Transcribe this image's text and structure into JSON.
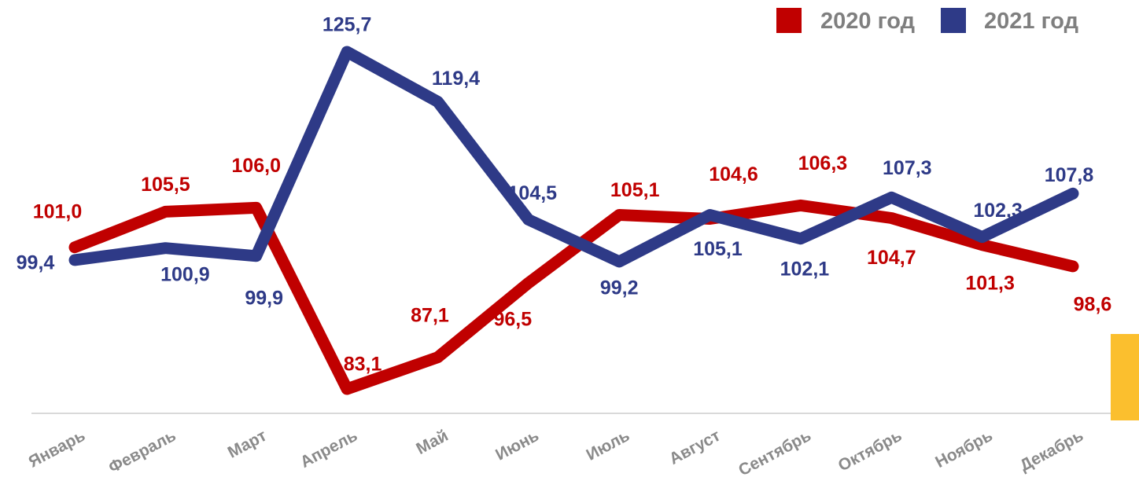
{
  "chart_data": {
    "type": "line",
    "categories": [
      "Январь",
      "Февраль",
      "Март",
      "Апрель",
      "Май",
      "Июнь",
      "Июль",
      "Август",
      "Сентябрь",
      "Октябрь",
      "Ноябрь",
      "Декабрь"
    ],
    "series": [
      {
        "name": "2020 год",
        "color": "#c00000",
        "values": [
          101.0,
          105.5,
          106.0,
          83.1,
          87.1,
          96.5,
          105.1,
          104.6,
          106.3,
          104.7,
          101.3,
          98.6
        ],
        "labels": [
          "101,0",
          "105,5",
          "106,0",
          "83,1",
          "87,1",
          "96,5",
          "105,1",
          "104,6",
          "106,3",
          "104,7",
          "101,3",
          "98,6"
        ]
      },
      {
        "name": "2021 год",
        "color": "#2e3a87",
        "values": [
          99.4,
          100.9,
          99.9,
          125.7,
          119.4,
          104.5,
          99.2,
          105.1,
          102.1,
          107.3,
          102.3,
          107.8
        ],
        "labels": [
          "99,4",
          "100,9",
          "99,9",
          "125,7",
          "119,4",
          "104,5",
          "99,2",
          "105,1",
          "102,1",
          "107,3",
          "102,3",
          "107,8"
        ]
      }
    ],
    "legend_position": "top-right",
    "grid": false,
    "title": "",
    "xlabel": "",
    "ylabel": ""
  },
  "accent_color": "#fbbf2e"
}
